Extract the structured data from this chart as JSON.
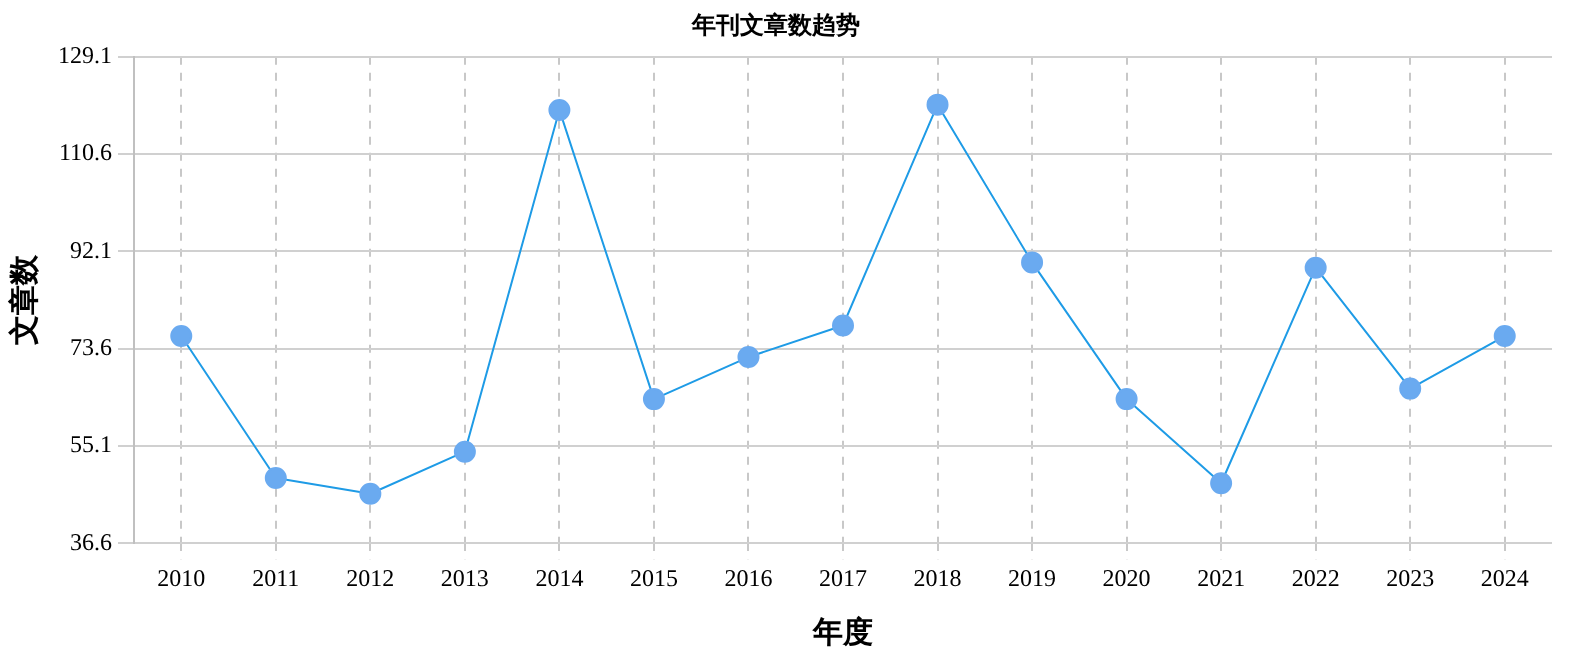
{
  "chart_data": {
    "type": "line",
    "title": "年刊文章数趋势",
    "xlabel": "年度",
    "ylabel": "文章数",
    "categories": [
      "2010",
      "2011",
      "2012",
      "2013",
      "2014",
      "2015",
      "2016",
      "2017",
      "2018",
      "2019",
      "2020",
      "2021",
      "2022",
      "2023",
      "2024"
    ],
    "series": [
      {
        "color": "#1e9be6",
        "values": [
          76,
          49,
          46,
          54,
          119,
          64,
          72,
          78,
          120,
          90,
          64,
          48,
          89,
          66,
          76
        ]
      }
    ],
    "ylim": [
      36.6,
      129.1
    ],
    "yticks": [
      36.6,
      55.1,
      73.6,
      92.1,
      110.6,
      129.1
    ],
    "grid": true,
    "legend": false,
    "marker": "circle",
    "line_style": "solid"
  }
}
